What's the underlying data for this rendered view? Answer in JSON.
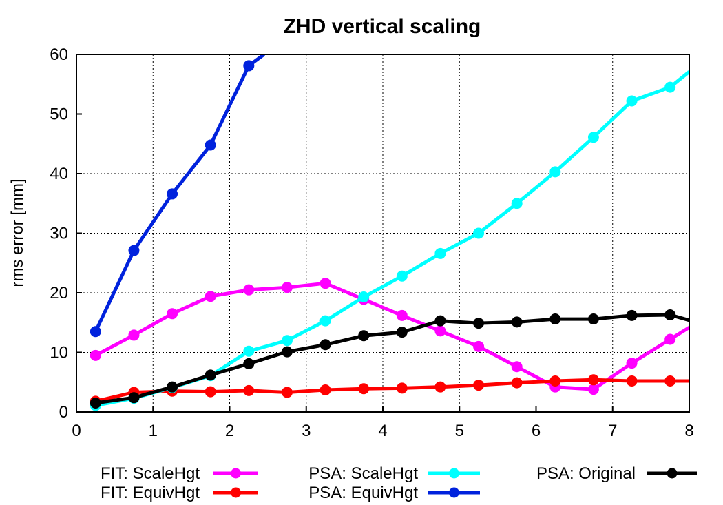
{
  "chart_data": {
    "type": "line",
    "title": "ZHD vertical scaling",
    "xlabel": "",
    "ylabel": "rms error [mm]",
    "xlim": [
      0,
      8
    ],
    "ylim": [
      0,
      60
    ],
    "xticks": [
      0,
      1,
      2,
      3,
      4,
      5,
      6,
      7,
      8
    ],
    "yticks": [
      0,
      10,
      20,
      30,
      40,
      50,
      60
    ],
    "grid": true,
    "legend_position": "bottom",
    "series": [
      {
        "name": "FIT: ScaleHgt",
        "color": "#ff00ff",
        "x": [
          0.25,
          0.75,
          1.25,
          1.75,
          2.25,
          2.75,
          3.25,
          3.75,
          4.25,
          4.75,
          5.25,
          5.75,
          6.25,
          6.75,
          7.25,
          7.75,
          8.0
        ],
        "y": [
          9.5,
          12.9,
          16.5,
          19.4,
          20.5,
          20.9,
          21.6,
          18.9,
          16.2,
          13.6,
          11.0,
          7.6,
          4.2,
          3.8,
          8.2,
          12.2,
          14.2
        ]
      },
      {
        "name": "FIT: EquivHgt",
        "color": "#ff0000",
        "x": [
          0.25,
          0.75,
          1.25,
          1.75,
          2.25,
          2.75,
          3.25,
          3.75,
          4.25,
          4.75,
          5.25,
          5.75,
          6.25,
          6.75,
          7.25,
          7.75,
          8.0
        ],
        "y": [
          1.8,
          3.3,
          3.5,
          3.4,
          3.6,
          3.3,
          3.7,
          3.9,
          4.0,
          4.2,
          4.5,
          4.9,
          5.2,
          5.4,
          5.2,
          5.2,
          5.2
        ]
      },
      {
        "name": "PSA: ScaleHgt",
        "color": "#00ffff",
        "x": [
          0.25,
          0.75,
          1.25,
          1.75,
          2.25,
          2.75,
          3.25,
          3.75,
          4.25,
          4.75,
          5.25,
          5.75,
          6.25,
          6.75,
          7.25,
          7.75,
          8.0
        ],
        "y": [
          1.1,
          2.3,
          4.1,
          6.1,
          10.2,
          12.0,
          15.3,
          19.3,
          22.8,
          26.6,
          30.0,
          35.0,
          40.3,
          46.1,
          52.2,
          54.5,
          57.1
        ]
      },
      {
        "name": "PSA: EquivHgt",
        "color": "#0022dd",
        "x": [
          0.25,
          0.75,
          1.25,
          1.75,
          2.25,
          2.45
        ],
        "y": [
          13.5,
          27.1,
          36.6,
          44.8,
          58.1,
          60.0
        ],
        "markers": [
          true,
          true,
          true,
          true,
          true,
          false
        ]
      },
      {
        "name": "PSA: Original",
        "color": "#000000",
        "x": [
          0.25,
          0.75,
          1.25,
          1.75,
          2.25,
          2.75,
          3.25,
          3.75,
          4.25,
          4.75,
          5.25,
          5.75,
          6.25,
          6.75,
          7.25,
          7.75,
          8.0
        ],
        "y": [
          1.5,
          2.4,
          4.2,
          6.2,
          8.1,
          10.1,
          11.3,
          12.8,
          13.4,
          15.3,
          14.9,
          15.1,
          15.6,
          15.6,
          16.2,
          16.3,
          15.4
        ]
      }
    ],
    "legend_columns": [
      [
        "FIT: ScaleHgt",
        "FIT: EquivHgt"
      ],
      [
        "PSA: ScaleHgt",
        "PSA: EquivHgt"
      ],
      [
        "PSA: Original"
      ]
    ]
  }
}
